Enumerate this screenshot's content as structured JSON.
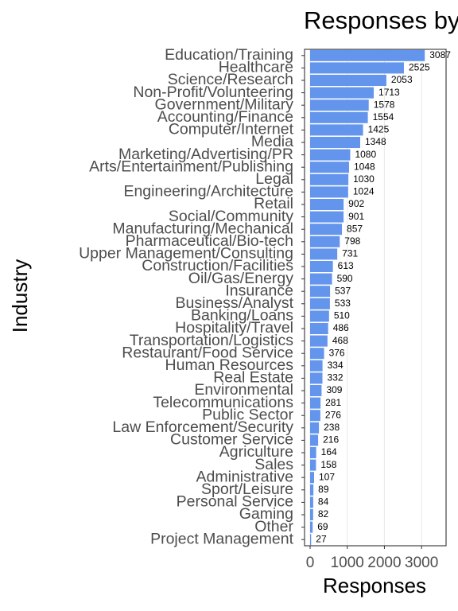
{
  "chart_data": {
    "type": "bar",
    "orientation": "horizontal",
    "title": "Responses by Industry",
    "x_label": "Responses",
    "y_label": "Industry",
    "categories": [
      "Education/Training",
      "Healthcare",
      "Science/Research",
      "Non-Profit/Volunteering",
      "Government/Military",
      "Accounting/Finance",
      "Computer/Internet",
      "Media",
      "Marketing/Advertising/PR",
      "Arts/Entertainment/Publishing",
      "Legal",
      "Engineering/Architecture",
      "Retail",
      "Social/Community",
      "Manufacturing/Mechanical",
      "Pharmaceutical/Bio-tech",
      "Upper Management/Consulting",
      "Construction/Facilities",
      "Oil/Gas/Energy",
      "Insurance",
      "Business/Analyst",
      "Banking/Loans",
      "Hospitality/Travel",
      "Transportation/Logistics",
      "Restaurant/Food Service",
      "Human Resources",
      "Real Estate",
      "Environmental",
      "Telecommunications",
      "Public Sector",
      "Law Enforcement/Security",
      "Customer Service",
      "Agriculture",
      "Sales",
      "Administrative",
      "Sport/Leisure",
      "Personal Service",
      "Gaming",
      "Other",
      "Project Management"
    ],
    "values": [
      3087,
      2525,
      2053,
      1713,
      1578,
      1554,
      1425,
      1348,
      1080,
      1048,
      1030,
      1024,
      902,
      901,
      857,
      798,
      731,
      613,
      590,
      537,
      533,
      510,
      486,
      468,
      376,
      334,
      332,
      309,
      281,
      276,
      238,
      216,
      164,
      158,
      107,
      89,
      84,
      82,
      69,
      27
    ],
    "color": "#6495ed",
    "xlim": [
      -150,
      3660
    ],
    "xticks": [
      0,
      1000,
      2000,
      3000
    ],
    "grid": true
  }
}
